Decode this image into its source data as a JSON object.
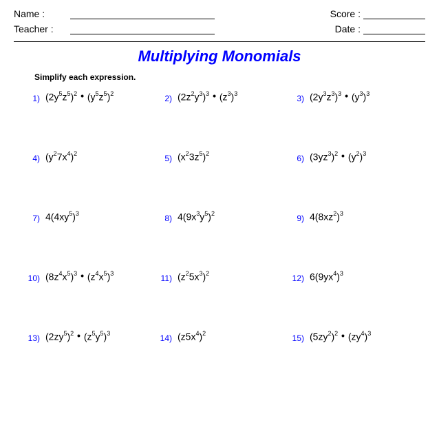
{
  "header": {
    "name_label": "Name :",
    "teacher_label": "Teacher :",
    "score_label": "Score :",
    "date_label": "Date :"
  },
  "title": "Multiplying Monomials",
  "instruction": "Simplify each expression.",
  "colors": {
    "accent": "#0000ff",
    "text": "#000000",
    "background": "#ffffff"
  },
  "problems": [
    {
      "n": "1)",
      "html": "(2y<sup>5</sup>z<sup>5</sup>)<sup>2</sup> <span class='dot'>•</span> (y<sup>5</sup>z<sup>5</sup>)<sup>2</sup>"
    },
    {
      "n": "2)",
      "html": "(2z<sup>2</sup>y<sup>3</sup>)<sup>3</sup> <span class='dot'>•</span> (z<sup>3</sup>)<sup>3</sup>"
    },
    {
      "n": "3)",
      "html": "(2y<sup>3</sup>z<sup>3</sup>)<sup>3</sup> <span class='dot'>•</span> (y<sup>3</sup>)<sup>3</sup>"
    },
    {
      "n": "4)",
      "html": "(y<sup>2</sup>7x<sup>4</sup>)<sup>2</sup>"
    },
    {
      "n": "5)",
      "html": "(x<sup>2</sup>3z<sup>5</sup>)<sup>2</sup>"
    },
    {
      "n": "6)",
      "html": "(3yz<sup>3</sup>)<sup>2</sup> <span class='dot'>•</span> (y<sup>2</sup>)<sup>3</sup>"
    },
    {
      "n": "7)",
      "html": "4(4xy<sup>5</sup>)<sup>3</sup>"
    },
    {
      "n": "8)",
      "html": "4(9x<sup>3</sup>y<sup>5</sup>)<sup>2</sup>"
    },
    {
      "n": "9)",
      "html": "4(8xz<sup>2</sup>)<sup>3</sup>"
    },
    {
      "n": "10)",
      "html": "(8z<sup>4</sup>x<sup>5</sup>)<sup>3</sup> <span class='dot'>•</span> (z<sup>4</sup>x<sup>5</sup>)<sup>3</sup>"
    },
    {
      "n": "11)",
      "html": "(z<sup>2</sup>5x<sup>3</sup>)<sup>2</sup>"
    },
    {
      "n": "12)",
      "html": "6(9yx<sup>4</sup>)<sup>3</sup>"
    },
    {
      "n": "13)",
      "html": "(2zy<sup>5</sup>)<sup>2</sup> <span class='dot'>•</span> (z<sup>5</sup>y<sup>5</sup>)<sup>3</sup>"
    },
    {
      "n": "14)",
      "html": "(z5x<sup>4</sup>)<sup>2</sup>"
    },
    {
      "n": "15)",
      "html": "(5zy<sup>2</sup>)<sup>2</sup> <span class='dot'>•</span> (zy<sup>4</sup>)<sup>3</sup>"
    }
  ]
}
